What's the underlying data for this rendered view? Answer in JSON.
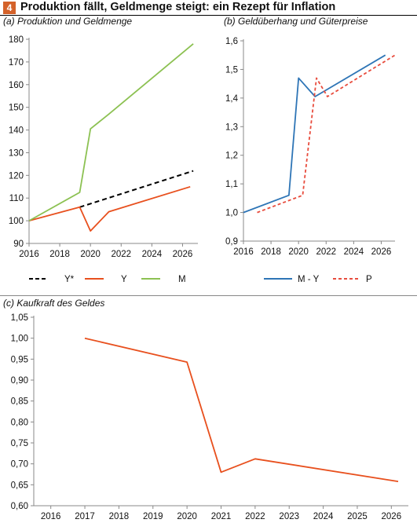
{
  "figure": {
    "number": "4",
    "title": "Produktion fällt, Geldmenge steigt: ein Rezept für Inflation",
    "accent_color": "#d4622a"
  },
  "chart_data": [
    {
      "id": "a",
      "type": "line",
      "label": "(a) Produktion und Geldmenge",
      "xlim": [
        2016,
        2027
      ],
      "ylim": [
        90,
        180
      ],
      "xticks": [
        2016,
        2018,
        2020,
        2022,
        2024,
        2026
      ],
      "yticks": [
        90,
        100,
        110,
        120,
        130,
        140,
        150,
        160,
        170,
        180
      ],
      "grid": false,
      "legend": "bottom",
      "series": [
        {
          "name": "Y*",
          "color": "#000000",
          "dash": true,
          "x": [
            2019.3,
            2026.7
          ],
          "y": [
            106,
            122
          ]
        },
        {
          "name": "Y",
          "color": "#e8501e",
          "dash": false,
          "x": [
            2016.0,
            2019.3,
            2020.0,
            2021.2,
            2026.5
          ],
          "y": [
            100,
            106,
            95.5,
            104,
            115
          ]
        },
        {
          "name": "M",
          "color": "#8cc152",
          "dash": false,
          "x": [
            2016.0,
            2019.3,
            2020.0,
            2021.2,
            2026.7
          ],
          "y": [
            100,
            112.5,
            140.5,
            147,
            178
          ]
        }
      ]
    },
    {
      "id": "b",
      "type": "line",
      "label": "(b) Geldüberhang und Güterpreise",
      "xlim": [
        2016,
        2027
      ],
      "ylim": [
        0.9,
        1.6
      ],
      "xticks": [
        2016,
        2018,
        2020,
        2022,
        2024,
        2026
      ],
      "yticks": [
        "0,9",
        "1,0",
        "1,1",
        "1,2",
        "1,3",
        "1,4",
        "1,5",
        "1,6"
      ],
      "ytick_values": [
        0.9,
        1.0,
        1.1,
        1.2,
        1.3,
        1.4,
        1.5,
        1.6
      ],
      "grid": false,
      "legend": "bottom",
      "series": [
        {
          "name": "M - Y",
          "color": "#2e75b6",
          "dash": false,
          "x": [
            2016.0,
            2019.3,
            2020.0,
            2021.2,
            2026.3
          ],
          "y": [
            1.0,
            1.06,
            1.47,
            1.405,
            1.55
          ]
        },
        {
          "name": "P",
          "color": "#e84c3d",
          "dash": true,
          "x": [
            2017.0,
            2020.3,
            2021.3,
            2022.1,
            2027.0
          ],
          "y": [
            1.0,
            1.06,
            1.47,
            1.405,
            1.55
          ]
        }
      ]
    },
    {
      "id": "c",
      "type": "line",
      "label": "(c) Kaufkraft des Geldes",
      "xlim": [
        2015.5,
        2026.5
      ],
      "ylim": [
        0.6,
        1.05
      ],
      "xticks": [
        2016,
        2017,
        2018,
        2019,
        2020,
        2021,
        2022,
        2023,
        2024,
        2025,
        2026
      ],
      "yticks": [
        "0,60",
        "0,65",
        "0,70",
        "0,75",
        "0,80",
        "0,85",
        "0,90",
        "0,95",
        "1,00",
        "1,05"
      ],
      "ytick_values": [
        0.6,
        0.65,
        0.7,
        0.75,
        0.8,
        0.85,
        0.9,
        0.95,
        1.0,
        1.05
      ],
      "grid": false,
      "legend": "none",
      "series": [
        {
          "color": "#e8501e",
          "dash": false,
          "x": [
            2017.0,
            2020.0,
            2021.0,
            2022.0,
            2026.2
          ],
          "y": [
            1.0,
            0.943,
            0.68,
            0.712,
            0.658
          ]
        }
      ]
    }
  ]
}
